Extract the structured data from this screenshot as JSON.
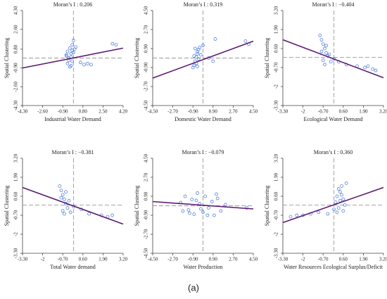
{
  "caption": "(a)",
  "chart_data": [
    {
      "type": "scatter",
      "title": "Moran’s I : 0.206",
      "xlabel": "Industrial Water Demand",
      "ylabel": "Spatial Clustering",
      "xlim": [
        -4.3,
        4.2
      ],
      "ylim": [
        -4.3,
        4.3
      ],
      "xticks": [
        {
          "value": -4.3,
          "label": "-4.30"
        },
        {
          "value": -2.6,
          "label": "-2.60"
        },
        {
          "value": -0.9,
          "label": "-0.90"
        },
        {
          "value": 0.8,
          "label": "0.80"
        },
        {
          "value": 2.5,
          "label": "2.50"
        },
        {
          "value": 4.2,
          "label": "4.20"
        }
      ],
      "yticks": [
        {
          "value": -4.3,
          "label": "-4.30"
        },
        {
          "value": -2.6,
          "label": "-2.60"
        },
        {
          "value": -0.9,
          "label": "-0.90"
        },
        {
          "value": 0.8,
          "label": "0.80"
        },
        {
          "value": 2.6,
          "label": "2.60"
        },
        {
          "value": 4.3,
          "label": "4.30"
        }
      ],
      "color": "#3a6fd8",
      "line_color": "#5b1a72",
      "x": [
        -0.6,
        -0.5,
        -0.4,
        -0.3,
        -0.2,
        -0.1,
        0,
        -0.5,
        -0.3,
        -0.2,
        0.1,
        -0.4,
        -0.1,
        0.2,
        0,
        -0.6,
        0.6,
        0.9,
        1.2,
        1.5,
        3.3,
        3.6,
        -0.2,
        -0.1
      ],
      "values": [
        0.3,
        0.6,
        -0.2,
        0.9,
        0.1,
        1.2,
        0.5,
        -0.5,
        -0.8,
        0.4,
        0.8,
        0,
        -0.3,
        1.0,
        1.6,
        0.2,
        -0.4,
        -0.6,
        -0.5,
        -0.6,
        1.3,
        1.2,
        -0.7,
        0.7
      ],
      "trend_line": {
        "x": [
          -4.3,
          4.2
        ],
        "y": [
          -0.9,
          0.9
        ]
      }
    },
    {
      "type": "scatter",
      "title": "Moran’s I : 0.319",
      "xlabel": "Domestic Water Demand",
      "ylabel": "Spatial Clustering",
      "xlim": [
        -4.5,
        4.5
      ],
      "ylim": [
        -4.5,
        4.5
      ],
      "xticks": [
        {
          "value": -4.5,
          "label": "-4.50"
        },
        {
          "value": -2.7,
          "label": "-2.70"
        },
        {
          "value": -0.9,
          "label": "-0.90"
        },
        {
          "value": 0.9,
          "label": "0.90"
        },
        {
          "value": 2.7,
          "label": "2.70"
        },
        {
          "value": 4.5,
          "label": "4.50"
        }
      ],
      "yticks": [
        {
          "value": -4.5,
          "label": "-4.50"
        },
        {
          "value": -2.7,
          "label": "-2.70"
        },
        {
          "value": -0.9,
          "label": "-0.90"
        },
        {
          "value": 0.9,
          "label": "0.90"
        },
        {
          "value": 2.7,
          "label": "2.70"
        },
        {
          "value": 4.5,
          "label": "4.50"
        }
      ],
      "color": "#3a6fd8",
      "line_color": "#5b1a72",
      "x": [
        -0.9,
        -0.8,
        -0.7,
        -0.6,
        -0.5,
        -0.4,
        -0.3,
        -0.8,
        -0.6,
        -0.5,
        -0.4,
        -0.2,
        -0.7,
        -0.5,
        0,
        0.5,
        0.9,
        1.1,
        3.8,
        4.1
      ],
      "values": [
        -0.9,
        -0.7,
        -0.3,
        0.1,
        0.4,
        0.8,
        1.0,
        0.2,
        -0.5,
        0.6,
        -0.1,
        0.3,
        0.9,
        -0.8,
        1.2,
        0,
        -0.3,
        1.8,
        1.6,
        1.3
      ],
      "trend_line": {
        "x": [
          -4.5,
          4.5
        ],
        "y": [
          -1.9,
          1.6
        ]
      }
    },
    {
      "type": "scatter",
      "title": "Moran’s I : −0.404",
      "xlabel": "Ecological Water Demand",
      "ylabel": "Spatial Clustering",
      "xlim": [
        -3.3,
        3.2
      ],
      "ylim": [
        -3.3,
        3.2
      ],
      "xticks": [
        {
          "value": -3.3,
          "label": "-3.30"
        },
        -2,
        {
          "value": -0.7,
          "label": "-0.70"
        },
        {
          "value": 0.6,
          "label": "0.60"
        },
        {
          "value": 1.9,
          "label": "1.90"
        },
        {
          "value": 3.2,
          "label": "3.20"
        }
      ],
      "yticks": [
        {
          "value": -3.3,
          "label": "-3.30"
        },
        -2,
        {
          "value": -0.7,
          "label": "-0.70"
        },
        {
          "value": 0.6,
          "label": "0.60"
        },
        {
          "value": 1.9,
          "label": "1.90"
        },
        {
          "value": 3.2,
          "label": "3.20"
        }
      ],
      "color": "#3a6fd8",
      "line_color": "#5b1a72",
      "x": [
        -0.9,
        -0.8,
        -0.7,
        -0.6,
        -0.5,
        -0.4,
        -0.8,
        -0.7,
        -0.6,
        -0.5,
        -0.3,
        -0.2,
        0,
        0.3,
        0.8,
        1.5,
        2.0,
        2.2,
        2.5,
        2.7
      ],
      "values": [
        1.5,
        1.2,
        0.9,
        0.6,
        0.3,
        0.1,
        0.4,
        -0.2,
        -0.5,
        0.8,
        0.2,
        -0.3,
        -0.1,
        -0.3,
        -0.5,
        -0.6,
        -0.7,
        -0.6,
        -0.8,
        -0.9
      ],
      "trend_line": {
        "x": [
          -3.3,
          3.2
        ],
        "y": [
          1.2,
          -1.4
        ]
      }
    },
    {
      "type": "scatter",
      "title": "Moran’s I : −0.381",
      "xlabel": "Total Water demand",
      "ylabel": "Spatial Clustering",
      "xlim": [
        -3.3,
        3.2
      ],
      "ylim": [
        -3.3,
        3.2
      ],
      "xticks": [
        {
          "value": -3.3,
          "label": "-3.30"
        },
        -2,
        {
          "value": -0.7,
          "label": "-0.70"
        },
        {
          "value": 0.6,
          "label": "0.60"
        },
        {
          "value": 1.9,
          "label": "1.90"
        },
        {
          "value": 3.2,
          "label": "3.20"
        }
      ],
      "yticks": [
        {
          "value": -3.3,
          "label": "-3.30"
        },
        -2,
        {
          "value": -0.7,
          "label": "-0.70"
        },
        {
          "value": 0.6,
          "label": "0.60"
        },
        {
          "value": 1.9,
          "label": "1.90"
        },
        {
          "value": 3.2,
          "label": "3.20"
        }
      ],
      "color": "#3a6fd8",
      "line_color": "#5b1a72",
      "x": [
        -0.9,
        -0.8,
        -0.7,
        -0.6,
        -0.5,
        -0.4,
        -0.8,
        -0.7,
        -0.6,
        -0.5,
        -0.3,
        -0.2,
        0,
        0.5,
        1.0,
        1.8,
        2.2,
        2.5
      ],
      "values": [
        1.3,
        1.0,
        0.7,
        0.4,
        0.1,
        -0.2,
        0.5,
        -0.4,
        -0.6,
        0.9,
        0.3,
        -0.5,
        -0.1,
        -0.3,
        -0.6,
        -0.7,
        -0.8,
        -0.7
      ],
      "trend_line": {
        "x": [
          -3.3,
          3.2
        ],
        "y": [
          1.2,
          -1.3
        ]
      }
    },
    {
      "type": "scatter",
      "title": "Moran’s I : −0.079",
      "xlabel": "Water Production",
      "ylabel": "Spatial Clustering",
      "xlim": [
        -4.5,
        4.5
      ],
      "ylim": [
        -4.5,
        4.5
      ],
      "xticks": [
        {
          "value": -4.5,
          "label": "-4.50"
        },
        {
          "value": -2.7,
          "label": "-2.70"
        },
        {
          "value": -0.9,
          "label": "-0.90"
        },
        {
          "value": 0.9,
          "label": "0.90"
        },
        {
          "value": 2.7,
          "label": "2.70"
        },
        {
          "value": 4.5,
          "label": "4.50"
        }
      ],
      "yticks": [
        {
          "value": -4.5,
          "label": "-4.50"
        },
        {
          "value": -2.7,
          "label": "-2.70"
        },
        {
          "value": -0.9,
          "label": "-0.90"
        },
        {
          "value": 0.9,
          "label": "0.90"
        },
        {
          "value": 2.7,
          "label": "2.70"
        },
        {
          "value": 4.5,
          "label": "4.50"
        }
      ],
      "color": "#3a6fd8",
      "line_color": "#5b1a72",
      "x": [
        -2.0,
        -1.6,
        -1.3,
        -1.0,
        -0.8,
        -0.5,
        -0.3,
        0,
        0.2,
        0.5,
        0.8,
        1.0,
        1.3,
        1.6,
        2.0,
        -1.2,
        -0.6,
        0.4,
        1.2,
        -0.2,
        3.9,
        -1.8
      ],
      "values": [
        0.3,
        0.9,
        -0.4,
        0.6,
        -0.8,
        1.2,
        0.2,
        -0.6,
        0.9,
        -0.2,
        0.4,
        -0.9,
        0.7,
        -0.5,
        0.1,
        -0.7,
        0.5,
        -0.9,
        1.1,
        -0.3,
        -0.2,
        -0.5
      ],
      "trend_line": {
        "x": [
          -4.5,
          4.5
        ],
        "y": [
          0.4,
          -0.3
        ]
      }
    },
    {
      "type": "scatter",
      "title": "Moran’s I : 0.360",
      "xlabel": "Water Resources Ecological Surplus/Deficit",
      "ylabel": "Spatial Clustering",
      "xlim": [
        -3.3,
        3.2
      ],
      "ylim": [
        -3.3,
        3.2
      ],
      "xticks": [
        {
          "value": -3.3,
          "label": "-3.30"
        },
        -2,
        {
          "value": -0.7,
          "label": "-0.70"
        },
        {
          "value": 0.6,
          "label": "0.60"
        },
        {
          "value": 1.9,
          "label": "1.90"
        },
        {
          "value": 3.2,
          "label": "3.20"
        }
      ],
      "yticks": [
        {
          "value": -3.3,
          "label": "-3.30"
        },
        -2,
        {
          "value": -0.7,
          "label": "-0.70"
        },
        {
          "value": 0.6,
          "label": "0.60"
        },
        {
          "value": 1.9,
          "label": "1.90"
        },
        {
          "value": 3.2,
          "label": "3.20"
        }
      ],
      "color": "#3a6fd8",
      "line_color": "#5b1a72",
      "x": [
        -2.8,
        -2.4,
        -2.0,
        -1.5,
        -1.0,
        -0.4,
        0,
        0.1,
        0.2,
        0.3,
        0.4,
        0.5,
        0.6,
        0.7,
        0.8,
        0.2,
        0.4,
        0.6,
        0.5,
        0.3
      ],
      "values": [
        -0.8,
        -0.7,
        -0.7,
        -0.6,
        -0.5,
        -0.6,
        -0.3,
        0.2,
        0.6,
        -0.2,
        0.9,
        1.3,
        0.4,
        0,
        1.5,
        -0.5,
        0.3,
        -0.4,
        0.7,
        1.1
      ],
      "trend_line": {
        "x": [
          -3.3,
          3.2
        ],
        "y": [
          -1.2,
          1.2
        ]
      }
    }
  ]
}
